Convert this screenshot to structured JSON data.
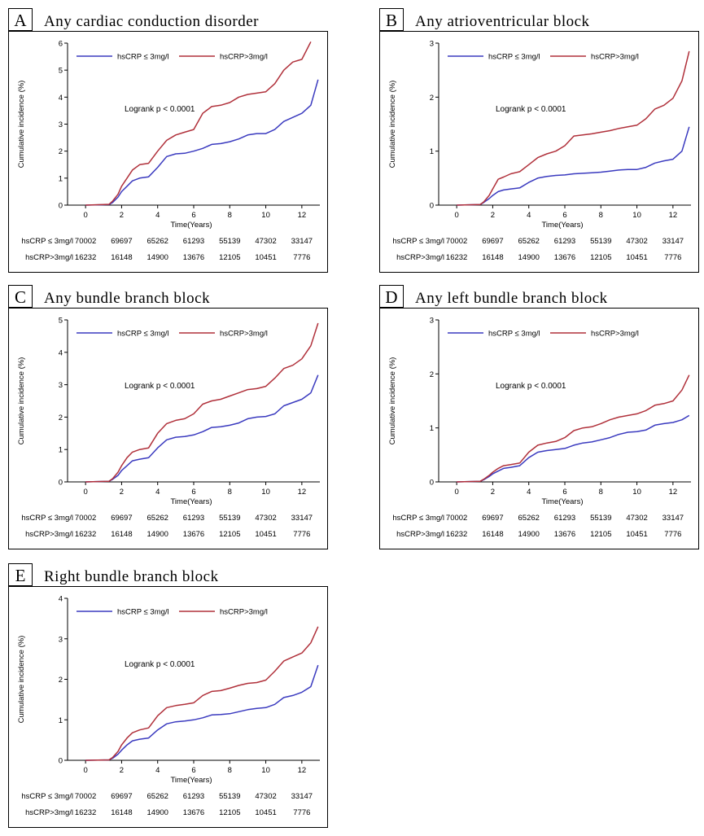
{
  "colors": {
    "low": "#3a3abf",
    "high": "#b0303a"
  },
  "chart_data": [
    {
      "type": "line",
      "letter": "A",
      "title": "Any cardiac conduction disorder",
      "xlabel": "Time(Years)",
      "ylabel": "Cumulative incidence (%)",
      "xlim": [
        -1,
        13
      ],
      "ylim": [
        0,
        6
      ],
      "xticks": [
        0,
        2,
        4,
        6,
        8,
        10,
        12
      ],
      "yticks": [
        0,
        1,
        2,
        3,
        4,
        5,
        6
      ],
      "annotation": "Logrank p < 0.0001",
      "series": [
        {
          "name": "hsCRP ≤ 3mg/l",
          "color_key": "low",
          "x": [
            0,
            1.3,
            1.5,
            1.8,
            2.0,
            2.3,
            2.6,
            3.0,
            3.5,
            4.0,
            4.5,
            5.0,
            5.5,
            6.0,
            6.5,
            7.0,
            7.5,
            8.0,
            8.5,
            9.0,
            9.5,
            10.0,
            10.5,
            11.0,
            11.5,
            12.0,
            12.5,
            12.9
          ],
          "y": [
            0,
            0.02,
            0.1,
            0.3,
            0.5,
            0.7,
            0.9,
            1.0,
            1.05,
            1.4,
            1.8,
            1.9,
            1.92,
            2.0,
            2.1,
            2.25,
            2.28,
            2.35,
            2.45,
            2.6,
            2.65,
            2.65,
            2.8,
            3.1,
            3.25,
            3.4,
            3.7,
            4.65
          ]
        },
        {
          "name": "hsCRP>3mg/l",
          "color_key": "high",
          "x": [
            0,
            1.3,
            1.5,
            1.8,
            2.0,
            2.3,
            2.6,
            3.0,
            3.5,
            4.0,
            4.5,
            5.0,
            5.5,
            6.0,
            6.5,
            7.0,
            7.5,
            8.0,
            8.5,
            9.0,
            9.5,
            10.0,
            10.5,
            11.0,
            11.5,
            12.0,
            12.5
          ],
          "y": [
            0,
            0.03,
            0.15,
            0.4,
            0.7,
            1.0,
            1.3,
            1.5,
            1.55,
            2.0,
            2.4,
            2.6,
            2.7,
            2.8,
            3.4,
            3.65,
            3.7,
            3.8,
            4.0,
            4.1,
            4.15,
            4.2,
            4.5,
            5.0,
            5.3,
            5.4,
            6.05
          ]
        }
      ],
      "risk_table": {
        "rows": [
          {
            "label": "hsCRP ≤ 3mg/l",
            "values": [
              "70002",
              "69697",
              "65262",
              "61293",
              "55139",
              "47302",
              "33147"
            ]
          },
          {
            "label": "hsCRP>3mg/l",
            "values": [
              "16232",
              "16148",
              "14900",
              "13676",
              "12105",
              "10451",
              "7776"
            ]
          }
        ]
      }
    },
    {
      "type": "line",
      "letter": "B",
      "title": "Any atrioventricular block",
      "xlabel": "Time(Years)",
      "ylabel": "Cumulative incidence (%)",
      "xlim": [
        -1,
        13
      ],
      "ylim": [
        0,
        3
      ],
      "xticks": [
        0,
        2,
        4,
        6,
        8,
        10,
        12
      ],
      "yticks": [
        0,
        1,
        2,
        3
      ],
      "annotation": "Logrank p < 0.0001",
      "series": [
        {
          "name": "hsCRP ≤ 3mg/l",
          "color_key": "low",
          "x": [
            0,
            1.3,
            1.5,
            1.8,
            2.0,
            2.3,
            2.6,
            3.0,
            3.5,
            4.0,
            4.5,
            5.0,
            5.5,
            6.0,
            6.5,
            7.0,
            7.5,
            8.0,
            8.5,
            9.0,
            9.5,
            10.0,
            10.5,
            11.0,
            11.5,
            12.0,
            12.5,
            12.9
          ],
          "y": [
            0,
            0.01,
            0.05,
            0.12,
            0.18,
            0.25,
            0.28,
            0.3,
            0.32,
            0.42,
            0.5,
            0.53,
            0.55,
            0.56,
            0.58,
            0.59,
            0.6,
            0.61,
            0.63,
            0.65,
            0.66,
            0.66,
            0.7,
            0.78,
            0.82,
            0.85,
            1.0,
            1.45
          ]
        },
        {
          "name": "hsCRP>3mg/l",
          "color_key": "high",
          "x": [
            0,
            1.3,
            1.5,
            1.8,
            2.0,
            2.3,
            2.6,
            3.0,
            3.5,
            4.0,
            4.5,
            5.0,
            5.5,
            6.0,
            6.5,
            7.0,
            7.5,
            8.0,
            8.5,
            9.0,
            9.5,
            10.0,
            10.5,
            11.0,
            11.5,
            12.0,
            12.5,
            12.9
          ],
          "y": [
            0,
            0.01,
            0.06,
            0.18,
            0.3,
            0.48,
            0.52,
            0.58,
            0.62,
            0.75,
            0.88,
            0.95,
            1.0,
            1.1,
            1.28,
            1.3,
            1.32,
            1.35,
            1.38,
            1.42,
            1.45,
            1.48,
            1.6,
            1.78,
            1.85,
            1.98,
            2.3,
            2.85
          ]
        }
      ],
      "risk_table": {
        "rows": [
          {
            "label": "hsCRP ≤ 3mg/l",
            "values": [
              "70002",
              "69697",
              "65262",
              "61293",
              "55139",
              "47302",
              "33147"
            ]
          },
          {
            "label": "hsCRP>3mg/l",
            "values": [
              "16232",
              "16148",
              "14900",
              "13676",
              "12105",
              "10451",
              "7776"
            ]
          }
        ]
      }
    },
    {
      "type": "line",
      "letter": "C",
      "title": "Any bundle branch block",
      "xlabel": "Time(Years)",
      "ylabel": "Cumulative incidence (%)",
      "xlim": [
        -1,
        13
      ],
      "ylim": [
        0,
        5
      ],
      "xticks": [
        0,
        2,
        4,
        6,
        8,
        10,
        12
      ],
      "yticks": [
        0,
        1,
        2,
        3,
        4,
        5
      ],
      "annotation": "Logrank p < 0.0001",
      "series": [
        {
          "name": "hsCRP ≤ 3mg/l",
          "color_key": "low",
          "x": [
            0,
            1.3,
            1.5,
            1.8,
            2.0,
            2.3,
            2.6,
            3.0,
            3.5,
            4.0,
            4.5,
            5.0,
            5.5,
            6.0,
            6.5,
            7.0,
            7.5,
            8.0,
            8.5,
            9.0,
            9.5,
            10.0,
            10.5,
            11.0,
            11.5,
            12.0,
            12.5,
            12.9
          ],
          "y": [
            0,
            0.02,
            0.08,
            0.2,
            0.35,
            0.5,
            0.65,
            0.7,
            0.75,
            1.05,
            1.3,
            1.38,
            1.4,
            1.45,
            1.55,
            1.68,
            1.7,
            1.75,
            1.82,
            1.95,
            2.0,
            2.02,
            2.1,
            2.35,
            2.45,
            2.55,
            2.75,
            3.3
          ]
        },
        {
          "name": "hsCRP>3mg/l",
          "color_key": "high",
          "x": [
            0,
            1.3,
            1.5,
            1.8,
            2.0,
            2.3,
            2.6,
            3.0,
            3.5,
            4.0,
            4.5,
            5.0,
            5.5,
            6.0,
            6.5,
            7.0,
            7.5,
            8.0,
            8.5,
            9.0,
            9.5,
            10.0,
            10.5,
            11.0,
            11.5,
            12.0,
            12.5,
            12.9
          ],
          "y": [
            0,
            0.02,
            0.1,
            0.3,
            0.5,
            0.75,
            0.92,
            1.0,
            1.05,
            1.5,
            1.8,
            1.9,
            1.95,
            2.1,
            2.4,
            2.5,
            2.55,
            2.65,
            2.75,
            2.85,
            2.88,
            2.95,
            3.2,
            3.5,
            3.6,
            3.8,
            4.2,
            4.9
          ]
        }
      ],
      "risk_table": {
        "rows": [
          {
            "label": "hsCRP ≤ 3mg/l",
            "values": [
              "70002",
              "69697",
              "65262",
              "61293",
              "55139",
              "47302",
              "33147"
            ]
          },
          {
            "label": "hsCRP>3mg/l",
            "values": [
              "16232",
              "16148",
              "14900",
              "13676",
              "12105",
              "10451",
              "7776"
            ]
          }
        ]
      }
    },
    {
      "type": "line",
      "letter": "D",
      "title": "Any left bundle branch block",
      "xlabel": "Time(Years)",
      "ylabel": "Cumulative incidence (%)",
      "xlim": [
        -1,
        13
      ],
      "ylim": [
        0,
        3
      ],
      "xticks": [
        0,
        2,
        4,
        6,
        8,
        10,
        12
      ],
      "yticks": [
        0,
        1,
        2,
        3
      ],
      "annotation": "Logrank p < 0.0001",
      "series": [
        {
          "name": "hsCRP ≤ 3mg/l",
          "color_key": "low",
          "x": [
            0,
            1.3,
            1.5,
            1.8,
            2.0,
            2.3,
            2.6,
            3.0,
            3.5,
            4.0,
            4.5,
            5.0,
            5.5,
            6.0,
            6.5,
            7.0,
            7.5,
            8.0,
            8.5,
            9.0,
            9.5,
            10.0,
            10.5,
            11.0,
            11.5,
            12.0,
            12.5,
            12.9
          ],
          "y": [
            0,
            0.01,
            0.04,
            0.1,
            0.15,
            0.2,
            0.25,
            0.27,
            0.3,
            0.45,
            0.55,
            0.58,
            0.6,
            0.62,
            0.68,
            0.72,
            0.74,
            0.78,
            0.82,
            0.88,
            0.92,
            0.93,
            0.96,
            1.05,
            1.08,
            1.1,
            1.15,
            1.23
          ]
        },
        {
          "name": "hsCRP>3mg/l",
          "color_key": "high",
          "x": [
            0,
            1.3,
            1.5,
            1.8,
            2.0,
            2.3,
            2.6,
            3.0,
            3.5,
            4.0,
            4.5,
            5.0,
            5.5,
            6.0,
            6.5,
            7.0,
            7.5,
            8.0,
            8.5,
            9.0,
            9.5,
            10.0,
            10.5,
            11.0,
            11.5,
            12.0,
            12.5,
            12.9
          ],
          "y": [
            0,
            0.01,
            0.05,
            0.12,
            0.18,
            0.25,
            0.3,
            0.32,
            0.35,
            0.55,
            0.68,
            0.72,
            0.75,
            0.82,
            0.95,
            1.0,
            1.02,
            1.08,
            1.15,
            1.2,
            1.23,
            1.26,
            1.32,
            1.42,
            1.45,
            1.5,
            1.7,
            1.98
          ]
        }
      ],
      "risk_table": {
        "rows": [
          {
            "label": "hsCRP ≤ 3mg/l",
            "values": [
              "70002",
              "69697",
              "65262",
              "61293",
              "55139",
              "47302",
              "33147"
            ]
          },
          {
            "label": "hsCRP>3mg/l",
            "values": [
              "16232",
              "16148",
              "14900",
              "13676",
              "12105",
              "10451",
              "7776"
            ]
          }
        ]
      }
    },
    {
      "type": "line",
      "letter": "E",
      "title": "Right bundle branch block",
      "xlabel": "Time(Years)",
      "ylabel": "Cumulative incidence (%)",
      "xlim": [
        -1,
        13
      ],
      "ylim": [
        0,
        4
      ],
      "xticks": [
        0,
        2,
        4,
        6,
        8,
        10,
        12
      ],
      "yticks": [
        0,
        1,
        2,
        3,
        4
      ],
      "annotation": "Logrank p < 0.0001",
      "series": [
        {
          "name": "hsCRP ≤ 3mg/l",
          "color_key": "low",
          "x": [
            0,
            1.3,
            1.5,
            1.8,
            2.0,
            2.3,
            2.6,
            3.0,
            3.5,
            4.0,
            4.5,
            5.0,
            5.5,
            6.0,
            6.5,
            7.0,
            7.5,
            8.0,
            8.5,
            9.0,
            9.5,
            10.0,
            10.5,
            11.0,
            11.5,
            12.0,
            12.5,
            12.9
          ],
          "y": [
            0,
            0.01,
            0.05,
            0.15,
            0.25,
            0.38,
            0.48,
            0.52,
            0.55,
            0.75,
            0.9,
            0.95,
            0.97,
            1.0,
            1.05,
            1.12,
            1.13,
            1.15,
            1.2,
            1.25,
            1.28,
            1.3,
            1.38,
            1.55,
            1.6,
            1.68,
            1.82,
            2.35
          ]
        },
        {
          "name": "hsCRP>3mg/l",
          "color_key": "high",
          "x": [
            0,
            1.3,
            1.5,
            1.8,
            2.0,
            2.3,
            2.6,
            3.0,
            3.5,
            4.0,
            4.5,
            5.0,
            5.5,
            6.0,
            6.5,
            7.0,
            7.5,
            8.0,
            8.5,
            9.0,
            9.5,
            10.0,
            10.5,
            11.0,
            11.5,
            12.0,
            12.5,
            12.9
          ],
          "y": [
            0,
            0.01,
            0.07,
            0.22,
            0.38,
            0.55,
            0.68,
            0.75,
            0.8,
            1.1,
            1.3,
            1.35,
            1.38,
            1.42,
            1.6,
            1.7,
            1.72,
            1.78,
            1.85,
            1.9,
            1.92,
            1.98,
            2.2,
            2.45,
            2.55,
            2.65,
            2.9,
            3.3
          ]
        }
      ],
      "risk_table": {
        "rows": [
          {
            "label": "hsCRP ≤ 3mg/l",
            "values": [
              "70002",
              "69697",
              "65262",
              "61293",
              "55139",
              "47302",
              "33147"
            ]
          },
          {
            "label": "hsCRP>3mg/l",
            "values": [
              "16232",
              "16148",
              "14900",
              "13676",
              "12105",
              "10451",
              "7776"
            ]
          }
        ]
      }
    }
  ]
}
